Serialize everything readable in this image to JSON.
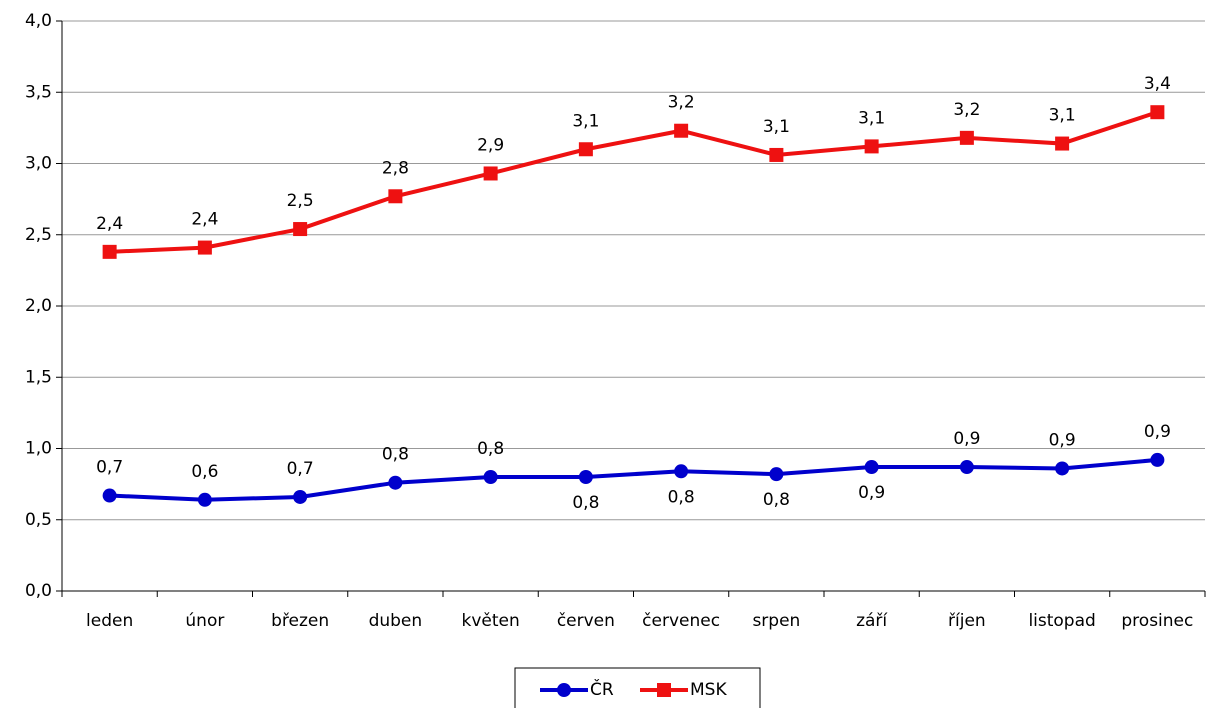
{
  "chart_data": {
    "type": "line",
    "categories": [
      "leden",
      "únor",
      "březen",
      "duben",
      "květen",
      "červen",
      "červenec",
      "srpen",
      "září",
      "říjen",
      "listopad",
      "prosinec"
    ],
    "series": [
      {
        "name": "ČR",
        "color": "#0000cc",
        "marker": "circle",
        "values": [
          0.67,
          0.64,
          0.66,
          0.76,
          0.8,
          0.8,
          0.84,
          0.82,
          0.87,
          0.87,
          0.86,
          0.92
        ],
        "value_labels": [
          "0,7",
          "0,6",
          "0,7",
          "0,8",
          "0,8",
          "0,8",
          "0,8",
          "0,8",
          "0,9",
          "0,9",
          "0,9",
          "0,9"
        ]
      },
      {
        "name": "MSK",
        "color": "#ee1111",
        "marker": "square",
        "values": [
          2.38,
          2.41,
          2.54,
          2.77,
          2.93,
          3.1,
          3.23,
          3.06,
          3.12,
          3.18,
          3.14,
          3.36
        ],
        "value_labels": [
          "2,4",
          "2,4",
          "2,5",
          "2,8",
          "2,9",
          "3,1",
          "3,2",
          "3,1",
          "3,1",
          "3,2",
          "3,1",
          "3,4"
        ]
      }
    ],
    "ylim": [
      0,
      4
    ],
    "yticks": [
      {
        "value": 0,
        "label": "0,0"
      },
      {
        "value": 0.5,
        "label": "0,5"
      },
      {
        "value": 1,
        "label": "1,0"
      },
      {
        "value": 1.5,
        "label": "1,5"
      },
      {
        "value": 2,
        "label": "2,0"
      },
      {
        "value": 2.5,
        "label": "2,5"
      },
      {
        "value": 3,
        "label": "3,0"
      },
      {
        "value": 3.5,
        "label": "3,5"
      },
      {
        "value": 4,
        "label": "4,0"
      }
    ],
    "grid": true,
    "legend": "bottom"
  }
}
